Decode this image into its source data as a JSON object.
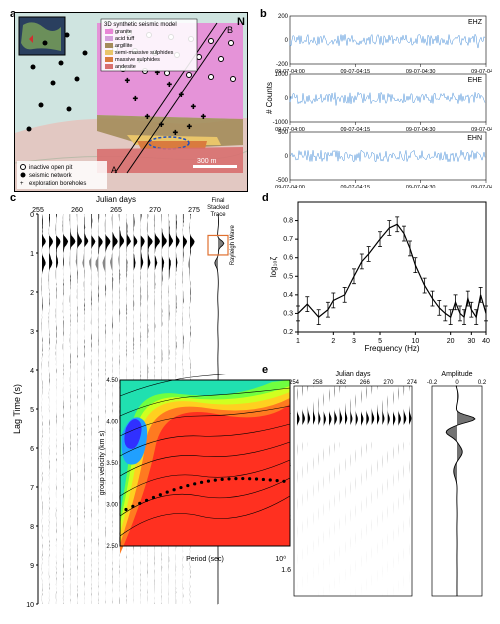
{
  "panels": {
    "a": {
      "label": "a",
      "north": "N",
      "legend_title": "3D synthetic seismic model",
      "lithologies": [
        {
          "name": "granite",
          "color": "#e985d6"
        },
        {
          "name": "acid tuff",
          "color": "#d59fdc"
        },
        {
          "name": "argillite",
          "color": "#a48c5a"
        },
        {
          "name": "semi-massive sulphides",
          "color": "#e9c56a"
        },
        {
          "name": "massive sulphides",
          "color": "#d97b3e"
        },
        {
          "name": "andesite",
          "color": "#d86f6f"
        }
      ],
      "markers": [
        {
          "symbol": "○",
          "label": "inactive open pit"
        },
        {
          "symbol": "●",
          "label": "seismic network"
        },
        {
          "symbol": "+",
          "label": "exploration boreholes"
        }
      ],
      "section_labels": [
        "A",
        "B"
      ],
      "scale_label": "300 m",
      "inset_bg": "#2a3f5f",
      "map_bg_top": "#cfe4e0",
      "map_bg_bottom": "#e2c8c2"
    },
    "b": {
      "label": "b",
      "ylabel": "# Counts",
      "channels": [
        {
          "name": "EHZ",
          "ylim": [
            -200,
            200
          ],
          "yticks": [
            -200,
            0,
            200
          ],
          "color": "#4a90d9"
        },
        {
          "name": "EHE",
          "ylim": [
            -1000,
            1000
          ],
          "yticks": [
            -1000,
            0,
            1000
          ],
          "color": "#4a90d9"
        },
        {
          "name": "EHN",
          "ylim": [
            -500,
            500
          ],
          "yticks": [
            -500,
            0,
            500
          ],
          "color": "#4a90d9"
        }
      ],
      "xticks": [
        "09-07-04:00",
        "09-07-04:15",
        "09-07-04:30",
        "09-07-04:45"
      ]
    },
    "c": {
      "label": "c",
      "xlabel": "Julian days",
      "ylabel": "Lag Time (s)",
      "xticks": [
        255,
        260,
        265,
        270,
        275
      ],
      "yticks": [
        0,
        1,
        2,
        3,
        4,
        5,
        6,
        7,
        8,
        9,
        10
      ],
      "side_title": "Final\nStacked\nTrace",
      "rayleigh_label": "Rayleigh Wave",
      "rayleigh_box_color": "#e07030",
      "inset": {
        "ylabel": "group velocity (km s)",
        "xlabel": "Period (sec)",
        "yticks": [
          "2.50",
          "3.00",
          "3.50",
          "4.00",
          "4.50"
        ],
        "xend": "10⁰",
        "colormap": [
          "#ff3020",
          "#ff7a20",
          "#ffd020",
          "#d0ff20",
          "#70ff40",
          "#20e0b0",
          "#20a0ff",
          "#3030ff"
        ]
      }
    },
    "d": {
      "label": "d",
      "xlabel": "Frequency (Hz)",
      "ylabel": "log₁₀ζ",
      "xticks": [
        1,
        2,
        3,
        5,
        10,
        20,
        30,
        40
      ],
      "ylim": [
        0.2,
        0.9
      ],
      "yticks": [
        0.2,
        0.3,
        0.4,
        0.5,
        0.6,
        0.7,
        0.8
      ],
      "data": [
        [
          1,
          0.3
        ],
        [
          1.2,
          0.35
        ],
        [
          1.5,
          0.28
        ],
        [
          1.8,
          0.32
        ],
        [
          2,
          0.37
        ],
        [
          2.5,
          0.4
        ],
        [
          3,
          0.5
        ],
        [
          3.5,
          0.58
        ],
        [
          4,
          0.62
        ],
        [
          5,
          0.7
        ],
        [
          6,
          0.76
        ],
        [
          7,
          0.78
        ],
        [
          8,
          0.73
        ],
        [
          9,
          0.65
        ],
        [
          10,
          0.56
        ],
        [
          12,
          0.45
        ],
        [
          14,
          0.38
        ],
        [
          16,
          0.33
        ],
        [
          18,
          0.3
        ],
        [
          20,
          0.28
        ],
        [
          22,
          0.36
        ],
        [
          24,
          0.3
        ],
        [
          26,
          0.28
        ],
        [
          28,
          0.38
        ],
        [
          30,
          0.32
        ],
        [
          33,
          0.28
        ],
        [
          36,
          0.4
        ],
        [
          40,
          0.3
        ]
      ],
      "err": 0.04
    },
    "e": {
      "label": "e",
      "xlabel_left": "Julian days",
      "ylabel": "time (s)",
      "xticks": [
        254,
        258,
        262,
        266,
        270,
        274
      ],
      "yticks": [
        0.4,
        0.8,
        1.2,
        1.6
      ],
      "amp_label": "Amplitude",
      "amp_ticks": [
        -0.2,
        0.0,
        0.2
      ]
    }
  },
  "colors": {
    "axis": "#000000",
    "text": "#000000"
  }
}
